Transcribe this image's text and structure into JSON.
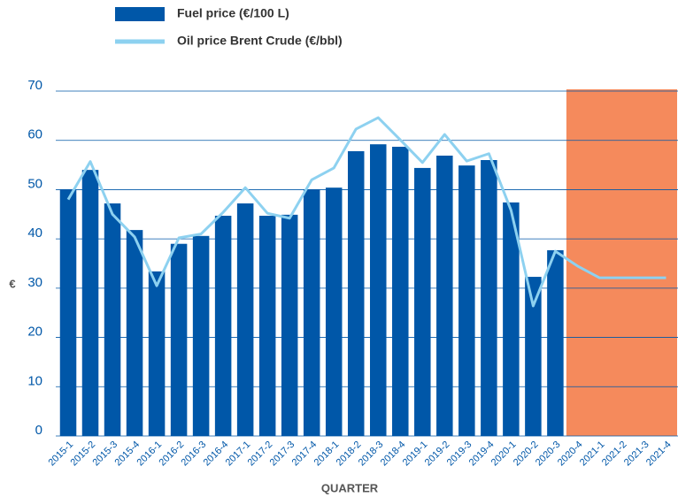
{
  "chart_data": {
    "type": "bar_line",
    "x_label": "QUARTER",
    "y_label": "€",
    "categories": [
      "2015-1",
      "2015-2",
      "2015-3",
      "2015-4",
      "2016-1",
      "2016-2",
      "2016-3",
      "2016-4",
      "2017-1",
      "2017-2",
      "2017-3",
      "2017-4",
      "2018-1",
      "2018-2",
      "2018-3",
      "2018-4",
      "2019-1",
      "2019-2",
      "2019-3",
      "2019-4",
      "2020-1",
      "2020-2",
      "2020-3",
      "2020-4",
      "2021-1",
      "2021-2",
      "2021-3",
      "2021-4"
    ],
    "series": [
      {
        "name": "Fuel price (€/100 L)",
        "type": "bar",
        "color": "#0057a8",
        "values": [
          50,
          54,
          47.2,
          41.8,
          33.4,
          39,
          40.6,
          44.7,
          47.2,
          44.7,
          44.9,
          50,
          50.4,
          57.8,
          59.2,
          58.7,
          54.4,
          56.9,
          54.9,
          56,
          47.4,
          32.3,
          37.7,
          null,
          null,
          null,
          null,
          null
        ]
      },
      {
        "name": "Oil price Brent Crude (€/bbl)",
        "type": "line",
        "color": "#8dd1f0",
        "values": [
          48,
          55.7,
          45,
          40.4,
          30.5,
          40.2,
          41,
          45.4,
          50.4,
          45.2,
          44.2,
          52,
          54.4,
          62.3,
          64.6,
          60.1,
          55.5,
          61.2,
          55.8,
          57.3,
          45.8,
          26.4,
          37.5,
          34.5,
          32.1,
          32.1,
          32.1,
          32.1
        ]
      }
    ],
    "shade_from": "2020-4",
    "shade_color": "#f58a5c",
    "ylim": [
      0,
      70
    ],
    "yticks": [
      0,
      10,
      20,
      30,
      40,
      50,
      60,
      70
    ],
    "grid": true
  }
}
